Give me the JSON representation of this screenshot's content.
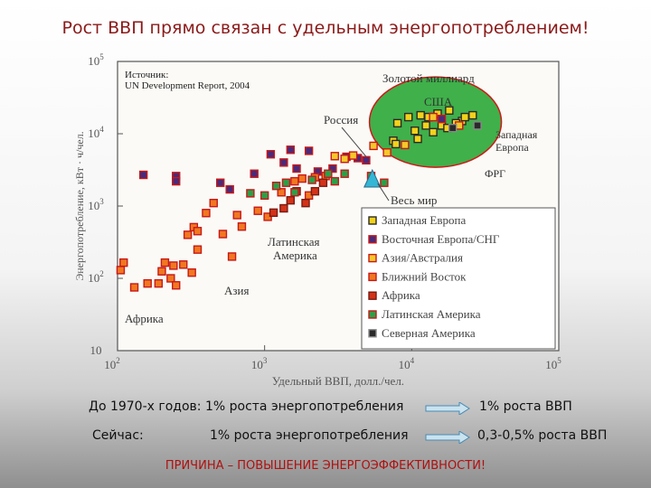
{
  "title": "Рост ВВП прямо связан с удельным энергопотреблением!",
  "source_line1": "Источник:",
  "source_line2": "UN Development Report, 2004",
  "bottom": {
    "row1_left": "До 1970-х годов: 1% роста энергопотребления",
    "row1_right": "1% роста ВВП",
    "row2_label": "Сейчас:",
    "row2_mid": "1% роста энергопотребления",
    "row2_right": "0,3-0,5% роста ВВП",
    "conclusion": "ПРИЧИНА – ПОВЫШЕНИЕ ЭНЕРГОЭФФЕКТИВНОСТИ!"
  },
  "colors": {
    "accent_title": "#8b1a1a",
    "arrow_fill": "#c9e3ef",
    "arrow_stroke": "#4a89b0",
    "conclusion": "#b01010",
    "golden_billion_fill": "#3fb04a",
    "golden_billion_stroke": "#d01818"
  },
  "chart_data": {
    "type": "scatter",
    "scale": "log-log",
    "xlabel": "Удельный ВВП, долл./чел.",
    "ylabel": "Энергопотребление, кВт · ч/чел.",
    "xlim": [
      100,
      100000
    ],
    "ylim": [
      10,
      100000
    ],
    "x_ticks": [
      {
        "value": 100,
        "base": "10",
        "exp": "2"
      },
      {
        "value": 1000,
        "base": "10",
        "exp": "3"
      },
      {
        "value": 10000,
        "base": "10",
        "exp": "4"
      },
      {
        "value": 100000,
        "base": "10",
        "exp": "5"
      }
    ],
    "y_ticks": [
      {
        "value": 10,
        "base": "10",
        "exp": ""
      },
      {
        "value": 100,
        "base": "10",
        "exp": "2"
      },
      {
        "value": 1000,
        "base": "10",
        "exp": "3"
      },
      {
        "value": 10000,
        "base": "10",
        "exp": "4"
      },
      {
        "value": 100000,
        "base": "10",
        "exp": "5"
      }
    ],
    "legend_position": "bottom-right",
    "series": [
      {
        "name": "Западная Европа",
        "fill": "#f2d21a",
        "stroke": "#2a2a2a",
        "points": [
          [
            8000,
            14000
          ],
          [
            9500,
            17000
          ],
          [
            11500,
            18000
          ],
          [
            13000,
            17000
          ],
          [
            15000,
            19000
          ],
          [
            18000,
            21000
          ],
          [
            22000,
            15000
          ],
          [
            23000,
            17000
          ],
          [
            26000,
            18000
          ],
          [
            12500,
            13000
          ],
          [
            16000,
            13000
          ],
          [
            17500,
            12000
          ],
          [
            20000,
            14000
          ],
          [
            10500,
            11000
          ],
          [
            14000,
            10500
          ],
          [
            7500,
            8000
          ],
          [
            11000,
            8500
          ],
          [
            7800,
            7200
          ]
        ]
      },
      {
        "name": "Восточная Европа/СНГ",
        "fill": "#4a2a7a",
        "stroke": "#c81818",
        "points": [
          [
            150,
            2700
          ],
          [
            250,
            2600
          ],
          [
            250,
            2200
          ],
          [
            500,
            2100
          ],
          [
            580,
            1700
          ],
          [
            850,
            2800
          ],
          [
            1100,
            5200
          ],
          [
            1350,
            4000
          ],
          [
            1500,
            6000
          ],
          [
            1650,
            3300
          ],
          [
            2000,
            5800
          ],
          [
            2300,
            3000
          ],
          [
            2900,
            3300
          ],
          [
            3600,
            4800
          ],
          [
            4300,
            4600
          ],
          [
            4900,
            4300
          ],
          [
            16000,
            16000
          ]
        ]
      },
      {
        "name": "Азия/Австралия",
        "fill": "#f5c82a",
        "stroke": "#c81818",
        "points": [
          [
            3000,
            4900
          ],
          [
            3500,
            4500
          ],
          [
            4000,
            5000
          ],
          [
            5500,
            6800
          ],
          [
            6800,
            5500
          ],
          [
            9000,
            7000
          ],
          [
            14000,
            17000
          ],
          [
            21000,
            13000
          ]
        ]
      },
      {
        "name": "Ближний Восток",
        "fill": "#f07820",
        "stroke": "#c81818",
        "points": [
          [
            105,
            130
          ],
          [
            110,
            165
          ],
          [
            130,
            75
          ],
          [
            160,
            85
          ],
          [
            190,
            85
          ],
          [
            200,
            125
          ],
          [
            210,
            165
          ],
          [
            230,
            100
          ],
          [
            240,
            150
          ],
          [
            250,
            80
          ],
          [
            280,
            155
          ],
          [
            300,
            400
          ],
          [
            320,
            120
          ],
          [
            330,
            510
          ],
          [
            350,
            450
          ],
          [
            350,
            250
          ],
          [
            400,
            800
          ],
          [
            450,
            1100
          ],
          [
            520,
            410
          ],
          [
            600,
            200
          ],
          [
            650,
            750
          ],
          [
            700,
            520
          ],
          [
            900,
            860
          ],
          [
            1050,
            710
          ],
          [
            1300,
            1550
          ],
          [
            1600,
            2200
          ],
          [
            1800,
            2400
          ],
          [
            2000,
            1400
          ],
          [
            2200,
            2500
          ],
          [
            2600,
            2600
          ]
        ]
      },
      {
        "name": "Африка",
        "fill": "#d33318",
        "stroke": "#7a1a12",
        "points": [
          [
            1150,
            810
          ],
          [
            1350,
            930
          ],
          [
            1500,
            1200
          ],
          [
            1650,
            1600
          ],
          [
            1900,
            1100
          ],
          [
            2200,
            1600
          ],
          [
            2500,
            2100
          ]
        ]
      },
      {
        "name": "Латинская Америка",
        "fill": "#2aa048",
        "stroke": "#c81818",
        "points": [
          [
            800,
            1500
          ],
          [
            1000,
            1400
          ],
          [
            1200,
            1900
          ],
          [
            1400,
            2100
          ],
          [
            1600,
            1550
          ],
          [
            2100,
            2300
          ],
          [
            2700,
            2800
          ],
          [
            3000,
            2200
          ],
          [
            3500,
            2800
          ],
          [
            5300,
            2600
          ],
          [
            6500,
            2100
          ]
        ]
      },
      {
        "name": "Северная Америка",
        "fill": "#2a2a2a",
        "stroke": "#888888",
        "points": [
          [
            19000,
            12000
          ],
          [
            28000,
            13000
          ]
        ]
      }
    ],
    "world": {
      "name": "Весь мир",
      "x": 5400,
      "y": 2300
    }
  },
  "annotations": {
    "golden_billion": "Золотой миллиард",
    "usa": "США",
    "west_europe_line1": "Западная",
    "west_europe_line2": "Европа",
    "frg": "ФРГ",
    "russia": "Россия",
    "world": "Весь мир",
    "latin_line1": "Латинская",
    "latin_line2": "Америка",
    "asia": "Азия",
    "africa": "Африка"
  }
}
